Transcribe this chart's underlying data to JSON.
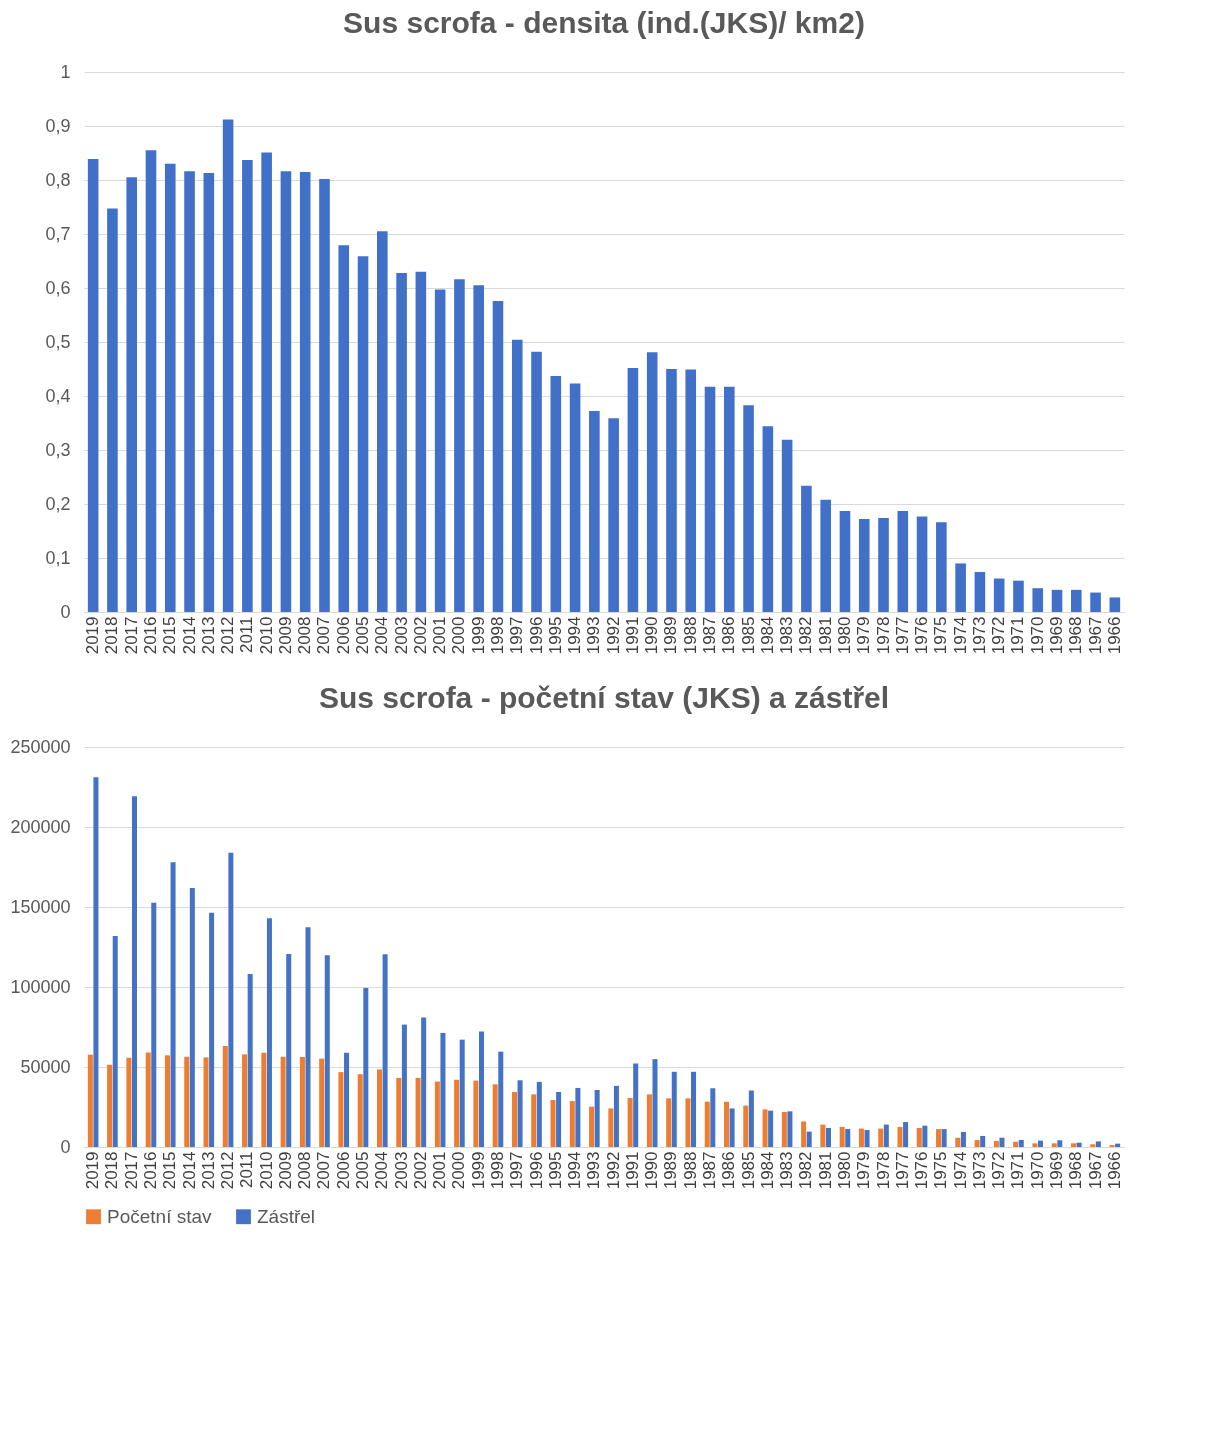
{
  "chart_data": [
    {
      "type": "bar",
      "title": "Sus scrofa - densita (ind.(JKS)/ km2)",
      "categories": [
        "2019",
        "2018",
        "2017",
        "2016",
        "2015",
        "2014",
        "2013",
        "2012",
        "2011",
        "2010",
        "2009",
        "2008",
        "2007",
        "2006",
        "2005",
        "2004",
        "2003",
        "2002",
        "2001",
        "2000",
        "1999",
        "1998",
        "1997",
        "1996",
        "1995",
        "1994",
        "1993",
        "1992",
        "1991",
        "1990",
        "1989",
        "1988",
        "1987",
        "1986",
        "1985",
        "1984",
        "1983",
        "1982",
        "1981",
        "1980",
        "1979",
        "1978",
        "1977",
        "1976",
        "1975",
        "1974",
        "1973",
        "1972",
        "1971",
        "1970",
        "1969",
        "1968",
        "1967",
        "1966"
      ],
      "series": [
        {
          "color": "#4170c8",
          "values": [
            0.839,
            0.747,
            0.805,
            0.855,
            0.83,
            0.816,
            0.813,
            0.912,
            0.837,
            0.851,
            0.816,
            0.815,
            0.802,
            0.679,
            0.659,
            0.705,
            0.628,
            0.63,
            0.597,
            0.616,
            0.605,
            0.576,
            0.504,
            0.482,
            0.437,
            0.423,
            0.372,
            0.359,
            0.452,
            0.481,
            0.45,
            0.449,
            0.417,
            0.417,
            0.383,
            0.344,
            0.319,
            0.234,
            0.208,
            0.187,
            0.172,
            0.174,
            0.187,
            0.177,
            0.166,
            0.09,
            0.074,
            0.062,
            0.058,
            0.044,
            0.041,
            0.041,
            0.036,
            0.027
          ]
        }
      ],
      "ylim": [
        0,
        1
      ],
      "yticks": [
        0,
        {
          "value": 0.1,
          "label": "0,1"
        },
        {
          "value": 0.2,
          "label": "0,2"
        },
        {
          "value": 0.3,
          "label": "0,3"
        },
        {
          "value": 0.4,
          "label": "0,4"
        },
        {
          "value": 0.5,
          "label": "0,5"
        },
        {
          "value": 0.6,
          "label": "0,6"
        },
        {
          "value": 0.7,
          "label": "0,7"
        },
        {
          "value": 0.8,
          "label": "0,8"
        },
        {
          "value": 0.9,
          "label": "0,9"
        },
        1
      ],
      "grid": "y"
    },
    {
      "type": "bar",
      "title": "Sus scrofa - početní stav (JKS) a zástřel",
      "categories": [
        "2019",
        "2018",
        "2017",
        "2016",
        "2015",
        "2014",
        "2013",
        "2012",
        "2011",
        "2010",
        "2009",
        "2008",
        "2007",
        "2006",
        "2005",
        "2004",
        "2003",
        "2002",
        "2001",
        "2000",
        "1999",
        "1998",
        "1997",
        "1996",
        "1995",
        "1994",
        "1993",
        "1992",
        "1991",
        "1990",
        "1989",
        "1988",
        "1987",
        "1986",
        "1985",
        "1984",
        "1983",
        "1982",
        "1981",
        "1980",
        "1979",
        "1978",
        "1977",
        "1976",
        "1975",
        "1974",
        "1973",
        "1972",
        "1971",
        "1970",
        "1969",
        "1968",
        "1967",
        "1966"
      ],
      "series": [
        {
          "name": "Početní stav",
          "color": "#ed7d31",
          "values": [
            57700,
            51400,
            55800,
            59100,
            57300,
            56400,
            56000,
            63100,
            57900,
            58900,
            56400,
            56200,
            55200,
            46800,
            45500,
            48500,
            43200,
            43200,
            40900,
            42000,
            41500,
            39200,
            34400,
            32900,
            29400,
            28700,
            25200,
            24100,
            30600,
            32900,
            30400,
            30400,
            28300,
            28300,
            25900,
            23500,
            21900,
            16000,
            14000,
            12500,
            11500,
            11500,
            12500,
            11900,
            11200,
            5800,
            4400,
            3700,
            3300,
            2300,
            2300,
            2300,
            1700,
            1200
          ]
        },
        {
          "name": "Zástřel",
          "color": "#4472c4",
          "values": [
            231100,
            131900,
            219200,
            152700,
            177900,
            161900,
            146400,
            183900,
            108200,
            143000,
            120600,
            137400,
            119800,
            58900,
            99400,
            120400,
            76500,
            81000,
            71300,
            67100,
            72200,
            59600,
            41700,
            40700,
            34400,
            36900,
            35600,
            38200,
            52200,
            54900,
            47000,
            47000,
            36700,
            24100,
            35300,
            22700,
            22300,
            9600,
            11900,
            11300,
            10600,
            14000,
            15600,
            13300,
            11200,
            9400,
            6900,
            5800,
            4400,
            4000,
            4200,
            2700,
            3500,
            2100
          ]
        }
      ],
      "ylim": [
        0,
        250000
      ],
      "yticks": [
        0,
        50000,
        100000,
        150000,
        200000,
        250000
      ],
      "grid": "y",
      "legend": "bottom"
    }
  ]
}
